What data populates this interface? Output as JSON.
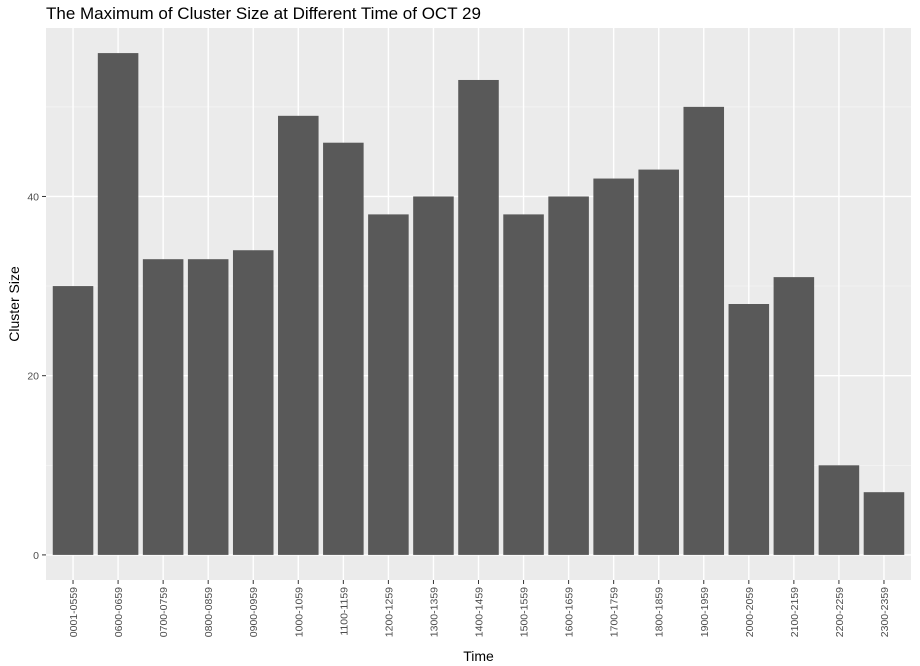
{
  "chart_data": {
    "type": "bar",
    "title": "The Maximum of Cluster Size at Different Time of OCT 29",
    "xlabel": "Time",
    "ylabel": "Cluster Size",
    "categories": [
      "0001-0559",
      "0600-0659",
      "0700-0759",
      "0800-0859",
      "0900-0959",
      "1000-1059",
      "1100-1159",
      "1200-1259",
      "1300-1359",
      "1400-1459",
      "1500-1559",
      "1600-1659",
      "1700-1759",
      "1800-1859",
      "1900-1959",
      "2000-2059",
      "2100-2159",
      "2200-2259",
      "2300-2359"
    ],
    "values": [
      30,
      56,
      33,
      33,
      34,
      49,
      46,
      38,
      40,
      53,
      38,
      40,
      42,
      43,
      50,
      28,
      31,
      10,
      7
    ],
    "ylim": [
      -2.8,
      58.8
    ],
    "yticks": [
      0,
      20,
      40
    ],
    "grid": true,
    "colors": {
      "bar": "#595959",
      "panel": "#ebebeb",
      "grid_major": "#ffffff",
      "grid_minor": "#f5f5f5"
    }
  }
}
